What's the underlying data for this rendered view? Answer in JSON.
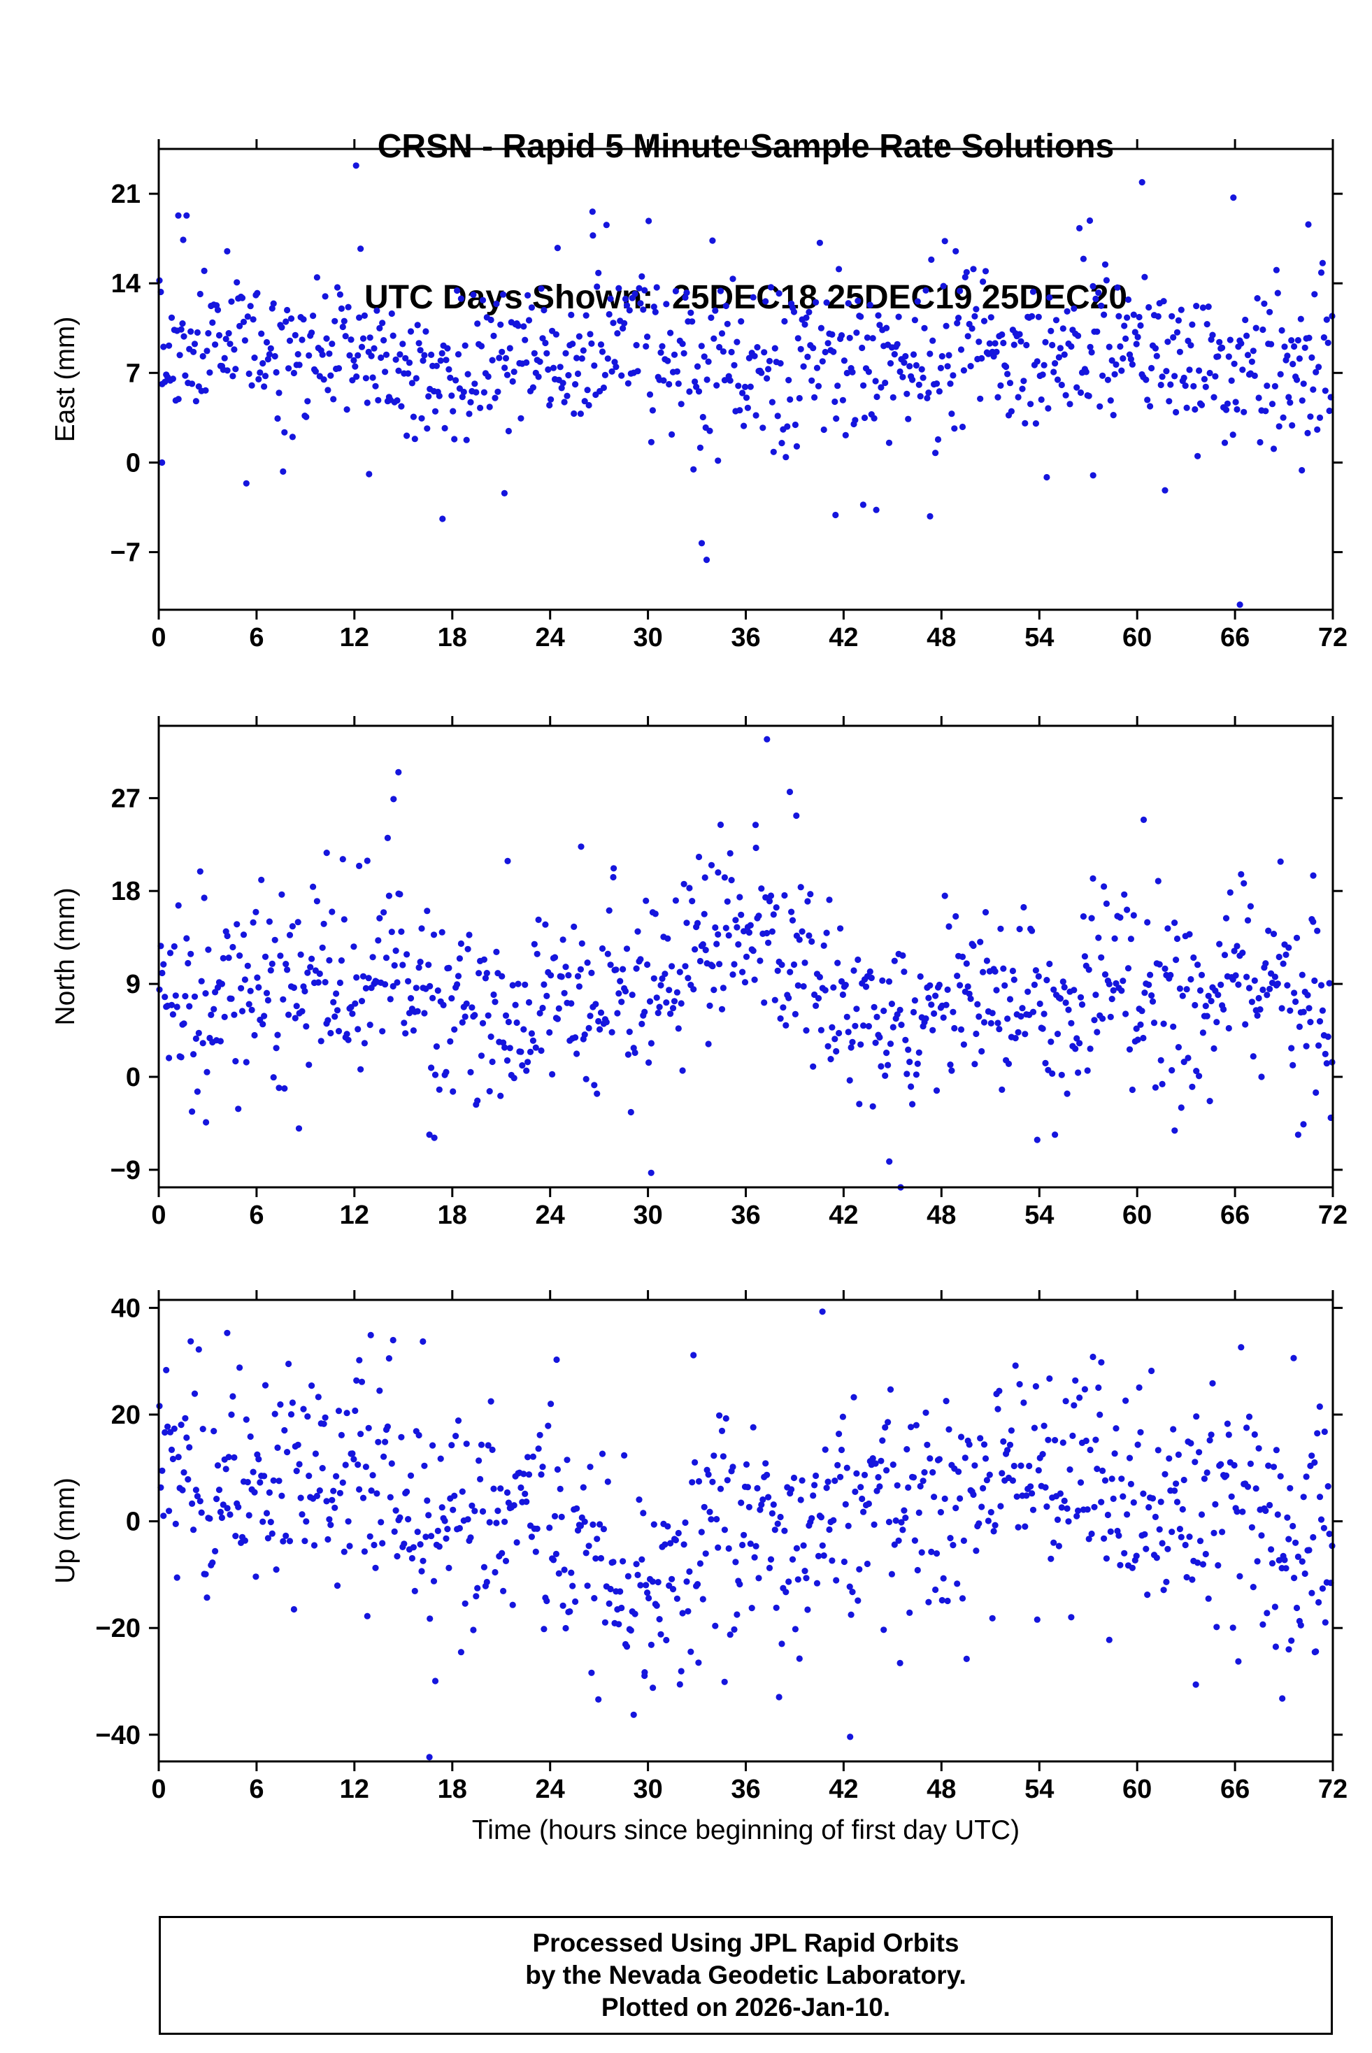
{
  "title": {
    "line1": "CRSN - Rapid 5 Minute Sample Rate Solutions",
    "line2": "UTC Days Shown:  25DEC18 25DEC19 25DEC20"
  },
  "footer": {
    "line1": "Processed Using JPL Rapid Orbits",
    "line2": "by the Nevada Geodetic Laboratory.",
    "line3": "Plotted on 2026-Jan-10."
  },
  "chart_data": {
    "type": "scatter",
    "title": "CRSN - Rapid 5 Minute Sample Rate Solutions",
    "subtitle": "UTC Days Shown:  25DEC18 25DEC19 25DEC20",
    "station": "CRSN",
    "utc_days": [
      "25DEC18",
      "25DEC19",
      "25DEC20"
    ],
    "xlabel": "Time (hours since beginning of first day UTC)",
    "xlim": [
      0,
      72
    ],
    "xticks": [
      0,
      6,
      12,
      18,
      24,
      30,
      36,
      42,
      48,
      54,
      60,
      66,
      72
    ],
    "sample_interval_minutes": 5,
    "points_per_panel": 864,
    "point_color": "#1515dd",
    "point_radius": 4.6,
    "grid": false,
    "legend": "none",
    "seed": 20181225,
    "series": [
      {
        "name": "East",
        "ylabel": "East (mm)",
        "ylim": [
          -11.5,
          24.5
        ],
        "yticks": [
          -7,
          0,
          7,
          14,
          21
        ],
        "mean": 8.3,
        "sd": 3.2,
        "trend": [
          {
            "amp": 1.0,
            "period": 26,
            "phase": 1.1
          },
          {
            "amp": 0.7,
            "period": 9.5,
            "phase": 0.3
          }
        ],
        "bumps": [
          {
            "amp": -2.5,
            "center": 33.5,
            "width": 2.0
          }
        ],
        "outliers": [
          [
            12.1,
            23.2
          ],
          [
            0.2,
            0.0
          ],
          [
            1.2,
            19.3
          ],
          [
            1.5,
            17.4
          ],
          [
            4.2,
            16.5
          ],
          [
            26.6,
            19.6
          ],
          [
            60.3,
            21.9
          ],
          [
            65.9,
            20.7
          ],
          [
            57.1,
            18.9
          ],
          [
            70.5,
            18.6
          ],
          [
            33.3,
            -6.3
          ],
          [
            33.6,
            -7.6
          ],
          [
            66.3,
            -11.1
          ],
          [
            17.4,
            -4.4
          ],
          [
            41.5,
            -4.1
          ],
          [
            44.0,
            -3.7
          ],
          [
            47.3,
            -4.2
          ],
          [
            43.2,
            -3.3
          ],
          [
            70.1,
            -0.6
          ],
          [
            57.3,
            -1.0
          ],
          [
            21.2,
            -2.4
          ],
          [
            12.9,
            -0.9
          ],
          [
            69.5,
            2.9
          ]
        ]
      },
      {
        "name": "North",
        "ylabel": "North (mm)",
        "ylim": [
          -10.7,
          34.0
        ],
        "yticks": [
          -9,
          0,
          9,
          18,
          27
        ],
        "mean": 7.8,
        "sd": 4.6,
        "trend": [
          {
            "amp": 1.2,
            "period": 30,
            "phase": 0.2
          },
          {
            "amp": 0.9,
            "period": 8.5,
            "phase": 2.4
          }
        ],
        "bumps": [
          {
            "amp": 6.0,
            "center": 36.0,
            "width": 3.5
          },
          {
            "amp": 3.5,
            "center": 14.6,
            "width": 1.8
          },
          {
            "amp": -3.0,
            "center": 45.0,
            "width": 2.5
          }
        ],
        "outliers": [
          [
            37.3,
            32.7
          ],
          [
            14.7,
            29.5
          ],
          [
            14.4,
            26.9
          ],
          [
            38.7,
            27.6
          ],
          [
            39.1,
            25.3
          ],
          [
            36.6,
            24.4
          ],
          [
            33.9,
            20.5
          ],
          [
            34.3,
            19.8
          ],
          [
            60.4,
            24.9
          ],
          [
            10.3,
            21.7
          ],
          [
            21.4,
            20.9
          ],
          [
            25.9,
            22.3
          ],
          [
            27.9,
            20.2
          ],
          [
            70.8,
            19.5
          ],
          [
            33.5,
            19.3
          ],
          [
            30.2,
            -9.3
          ],
          [
            45.5,
            -10.7
          ],
          [
            16.6,
            -5.6
          ],
          [
            16.9,
            -5.9
          ],
          [
            44.8,
            -8.2
          ],
          [
            70.2,
            -4.6
          ],
          [
            62.3,
            -5.2
          ],
          [
            2.9,
            -4.4
          ],
          [
            8.6,
            -5.0
          ]
        ]
      },
      {
        "name": "Up",
        "ylabel": "Up (mm)",
        "ylim": [
          -45.0,
          41.5
        ],
        "yticks": [
          -40,
          -20,
          0,
          20,
          40
        ],
        "mean": 0.5,
        "sd": 10.5,
        "trend": [
          {
            "amp": 6.0,
            "period": 48,
            "phase": 0.79
          },
          {
            "amp": 2.5,
            "period": 11,
            "phase": 1.6
          }
        ],
        "bumps": [
          {
            "amp": -6.0,
            "center": 30.5,
            "width": 3.0
          }
        ],
        "outliers": [
          [
            16.6,
            -44.2
          ],
          [
            40.7,
            39.3
          ],
          [
            42.4,
            -40.4
          ],
          [
            4.2,
            35.3
          ],
          [
            13.0,
            34.9
          ],
          [
            16.2,
            33.7
          ],
          [
            12.3,
            30.2
          ],
          [
            24.4,
            30.3
          ],
          [
            69.6,
            30.6
          ],
          [
            57.8,
            29.8
          ],
          [
            30.3,
            -31.2
          ],
          [
            34.7,
            -30.1
          ],
          [
            63.6,
            -30.6
          ],
          [
            68.9,
            -33.2
          ],
          [
            70.9,
            -24.5
          ],
          [
            69.3,
            -24.0
          ],
          [
            68.5,
            -23.5
          ],
          [
            29.8,
            -28.3
          ],
          [
            33.1,
            -26.5
          ],
          [
            71.2,
            21.5
          ],
          [
            71.5,
            16.8
          ],
          [
            70.7,
            12.3
          ]
        ]
      }
    ]
  }
}
